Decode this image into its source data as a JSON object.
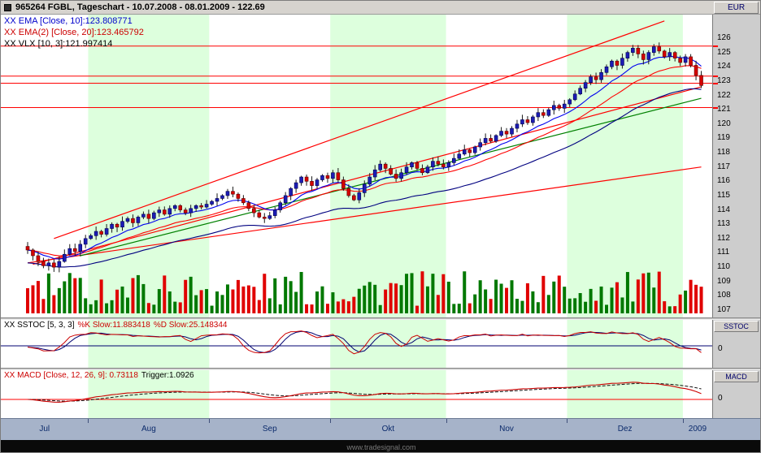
{
  "window": {
    "title": "965264 FGBL, Tageschart - 10.07.2008 - 08.01.2009 - 122.69",
    "currency_label": "EUR",
    "watermark": "www.tradesignal.com"
  },
  "indicators": {
    "ema_fast_label": "XX EMA [Close, 10]:123.808771",
    "ema_slow_label": "XX EMA(2) [Close, 20]:123.465792",
    "vlx_label": "XX VLX [10, 3]:121.997414"
  },
  "sstoc_panel": {
    "prefix": "XX SSTOC [5, 3, 3]",
    "k": "%K Slow:11.883418",
    "d": "%D Slow:25.148344",
    "axis_button": "SSTOC",
    "zero": "0"
  },
  "macd_panel": {
    "prefix": "XX MACD [Close, 12, 26, 9]: 0.73118",
    "trigger": "Trigger:1.0926",
    "axis_button": "MACD",
    "zero": "0"
  },
  "colors": {
    "band": "#ddffdd",
    "up": "#1c1cb4",
    "up_edge": "#000050",
    "down": "#d40000",
    "down_edge": "#600000",
    "vol_up": "#007800",
    "vol_down": "#e00000",
    "ema_fast": "#0000ee",
    "ema_slow": "#ff0000",
    "vlx": "#000080",
    "hline": "#ff0000",
    "stoch_k": "#cc0000",
    "stoch_d": "#000070",
    "stoch_mid": "#000070",
    "macd_line": "#cc0000",
    "macd_trigger": "#111111",
    "zero_line": "#ff0000"
  },
  "chart_data": {
    "type": "candlestick",
    "title": "965264 FGBL, Tageschart",
    "instrument": "FGBL",
    "period": "Tageschart",
    "date_range": "10.07.2008 - 08.01.2009",
    "last_price": 122.69,
    "currency": "EUR",
    "y_labels": [
      126,
      125,
      124,
      123,
      122,
      121,
      120,
      119,
      118,
      117,
      116,
      115,
      114,
      113,
      112,
      111,
      110,
      109,
      108,
      107
    ],
    "ylim": [
      107,
      126.8
    ],
    "months": [
      {
        "label": "Jul",
        "days": 12,
        "shaded": false
      },
      {
        "label": "Aug",
        "days": 23,
        "shaded": true
      },
      {
        "label": "Sep",
        "days": 23,
        "shaded": false
      },
      {
        "label": "Okt",
        "days": 22,
        "shaded": true
      },
      {
        "label": "Nov",
        "days": 23,
        "shaded": false
      },
      {
        "label": "Dez",
        "days": 22,
        "shaded": true
      },
      {
        "label": "2009",
        "days": 4,
        "shaded": false
      }
    ],
    "closes": [
      111.2,
      110.8,
      110.4,
      110.1,
      110.3,
      110.0,
      110.4,
      110.9,
      111.3,
      111.1,
      111.6,
      112.0,
      112.2,
      112.5,
      112.3,
      112.7,
      113.0,
      112.8,
      113.2,
      113.4,
      113.1,
      113.5,
      113.7,
      113.4,
      113.8,
      114.0,
      113.7,
      114.1,
      114.3,
      114.0,
      113.8,
      114.1,
      114.3,
      114.2,
      114.4,
      114.6,
      114.8,
      115.0,
      115.3,
      115.1,
      114.8,
      114.5,
      114.1,
      113.8,
      113.5,
      113.4,
      113.6,
      114.0,
      114.5,
      115.0,
      115.5,
      115.9,
      116.3,
      116.0,
      115.7,
      116.1,
      116.4,
      116.2,
      116.6,
      116.1,
      115.5,
      115.0,
      114.7,
      115.2,
      115.8,
      116.3,
      116.8,
      117.2,
      116.9,
      116.5,
      116.2,
      116.6,
      117.0,
      117.3,
      116.9,
      116.6,
      117.0,
      117.4,
      117.2,
      117.0,
      117.3,
      117.6,
      117.9,
      118.2,
      118.0,
      118.4,
      118.7,
      119.0,
      118.8,
      119.2,
      119.5,
      119.3,
      119.7,
      120.0,
      120.3,
      120.1,
      120.5,
      120.8,
      120.6,
      121.0,
      121.3,
      121.1,
      121.4,
      121.7,
      122.1,
      122.5,
      122.9,
      123.3,
      123.1,
      123.6,
      124.0,
      124.4,
      124.1,
      124.6,
      125.0,
      125.3,
      124.9,
      124.5,
      125.0,
      125.4,
      125.1,
      124.7,
      125.0,
      124.6,
      124.3,
      124.7,
      124.1,
      123.4,
      122.69
    ],
    "hlines": [
      125.45,
      123.35,
      122.85,
      121.15
    ],
    "trendlines": [
      {
        "d1": 5,
        "p1": 112.0,
        "d2": 121,
        "p2": 127.2,
        "color": "#ff0000"
      },
      {
        "d1": 1,
        "p1": 110.2,
        "d2": 128,
        "p2": 122.6,
        "color": "#ff0000"
      },
      {
        "d1": 0,
        "p1": 110.3,
        "d2": 128,
        "p2": 117.0,
        "color": "#ff0000"
      },
      {
        "d1": 10,
        "p1": 110.8,
        "d2": 128,
        "p2": 121.8,
        "color": "#008000"
      }
    ],
    "indicator_settings": {
      "ema_fast": 10,
      "ema_slow": 20,
      "vlx": [
        10,
        3
      ],
      "sstoc": [
        5,
        3,
        3
      ],
      "macd": [
        12,
        26,
        9
      ]
    },
    "has_volume": true
  }
}
